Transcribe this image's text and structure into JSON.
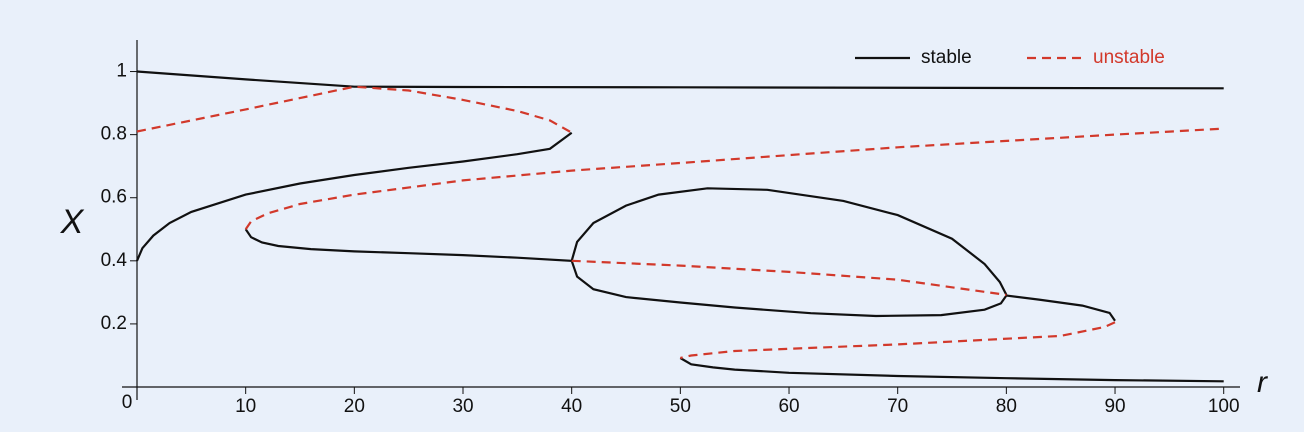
{
  "chart_data": {
    "type": "line",
    "xlabel": "r",
    "ylabel": "X",
    "xlim": [
      0,
      101.5
    ],
    "ylim": [
      0,
      1.1
    ],
    "xticks": [
      0,
      10,
      20,
      30,
      40,
      50,
      60,
      70,
      80,
      90,
      100
    ],
    "yticks": [
      0.2,
      0.4,
      0.6,
      0.8,
      1
    ],
    "legend": "top-right",
    "series": [
      {
        "name": "stable",
        "color": "#111111",
        "dash": false,
        "x": [
          0,
          10,
          20,
          30,
          50,
          75,
          100,
          null,
          0,
          0.5,
          1.5,
          3,
          5,
          10,
          15,
          20,
          25,
          30,
          35,
          38,
          40,
          null,
          10,
          10.5,
          11.5,
          13,
          16,
          20,
          25,
          30,
          35,
          40,
          40.5,
          42,
          45,
          48,
          52.5,
          58,
          65,
          70,
          75,
          78,
          79.4,
          80,
          null,
          40,
          40.5,
          42,
          45,
          50,
          55,
          62,
          68,
          74,
          78,
          79.5,
          80,
          83,
          87,
          89.5,
          90,
          null,
          50,
          51,
          53,
          55,
          60,
          70,
          80,
          90,
          100
        ],
        "values": [
          1.0,
          0.975,
          0.952,
          0.951,
          0.95,
          0.948,
          0.947,
          null,
          0.4,
          0.44,
          0.48,
          0.52,
          0.555,
          0.61,
          0.645,
          0.672,
          0.695,
          0.715,
          0.738,
          0.755,
          0.806,
          null,
          0.5,
          0.475,
          0.458,
          0.447,
          0.437,
          0.43,
          0.424,
          0.418,
          0.41,
          0.4,
          0.46,
          0.52,
          0.575,
          0.61,
          0.63,
          0.625,
          0.59,
          0.545,
          0.47,
          0.39,
          0.333,
          0.292,
          null,
          0.4,
          0.35,
          0.31,
          0.285,
          0.268,
          0.252,
          0.234,
          0.225,
          0.228,
          0.245,
          0.265,
          0.29,
          0.277,
          0.258,
          0.235,
          0.21,
          null,
          0.092,
          0.072,
          0.062,
          0.055,
          0.045,
          0.035,
          0.028,
          0.022,
          0.018
        ]
      },
      {
        "name": "unstable",
        "color": "#d2392b",
        "dash": true,
        "x": [
          0,
          10,
          20,
          25,
          30,
          35,
          38,
          40,
          null,
          10,
          10.5,
          12,
          15,
          20,
          30,
          40,
          50,
          60,
          70,
          80,
          90,
          100,
          null,
          40,
          50,
          60,
          70,
          80,
          null,
          90,
          89,
          85,
          70,
          55,
          51,
          50
        ],
        "values": [
          0.81,
          0.88,
          0.952,
          0.94,
          0.91,
          0.875,
          0.845,
          0.806,
          null,
          0.5,
          0.525,
          0.55,
          0.58,
          0.61,
          0.655,
          0.686,
          0.71,
          0.735,
          0.76,
          0.78,
          0.8,
          0.819,
          null,
          0.4,
          0.385,
          0.365,
          0.34,
          0.292,
          null,
          0.205,
          0.19,
          0.162,
          0.135,
          0.114,
          0.1,
          0.092
        ]
      }
    ]
  }
}
